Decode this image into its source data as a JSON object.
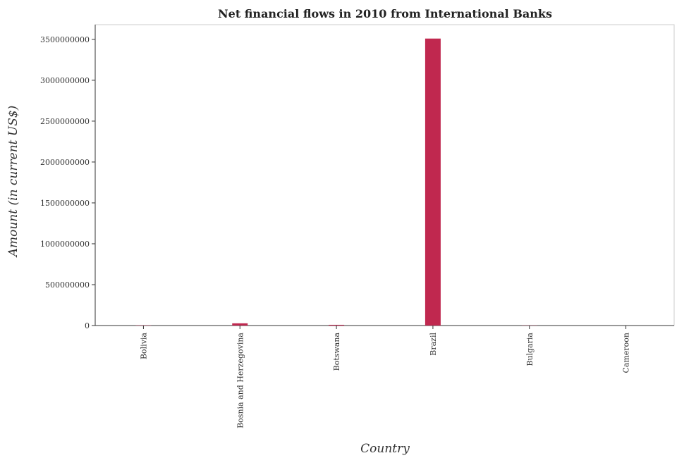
{
  "chart_data": {
    "type": "bar",
    "title": "Net financial flows in 2010 from International Banks",
    "xlabel": "Country",
    "ylabel": "Amount (in current US$)",
    "categories": [
      "Bolivia",
      "Bosnia and Herzegovina",
      "Botswana",
      "Brazil",
      "Bulgaria",
      "Cameroon"
    ],
    "values": [
      3000000,
      27000000,
      9000000,
      3510000000,
      2000000,
      0
    ],
    "ylim": [
      0,
      3680000000
    ],
    "yticks": [
      0,
      500000000,
      1000000000,
      1500000000,
      2000000000,
      2500000000,
      3000000000,
      3500000000
    ],
    "ytick_labels": [
      "0",
      "500000000",
      "1000000000",
      "1500000000",
      "2000000000",
      "2500000000",
      "3000000000",
      "3500000000"
    ],
    "grid": false,
    "legend": "none",
    "bar_color": "#c0284f"
  }
}
